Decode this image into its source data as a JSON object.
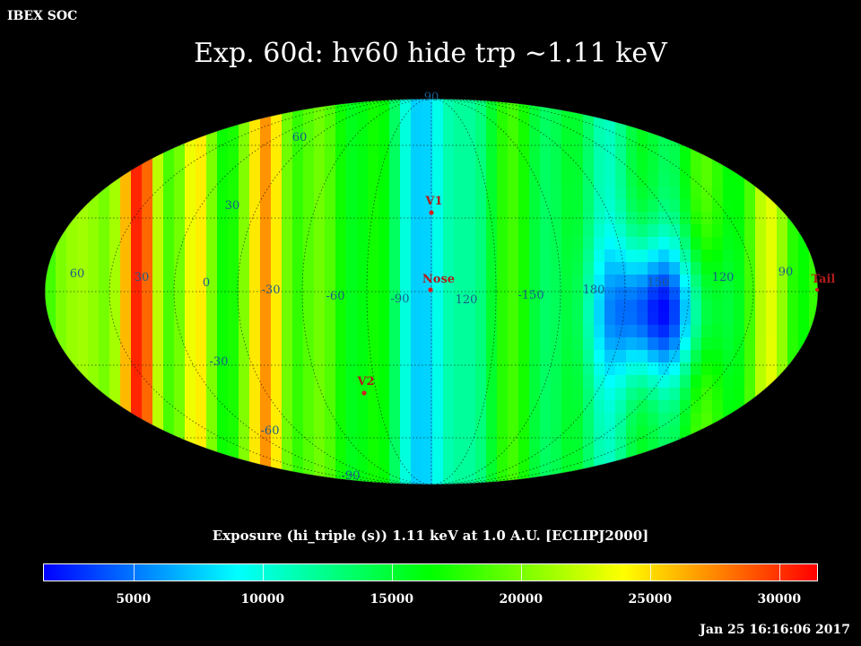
{
  "header": {
    "org_label": "IBEX SOC",
    "title": "Exp.   60d: hv60 hide trp ~1.11 keV"
  },
  "map": {
    "projection": "mollweide",
    "grid": true,
    "lat_labels": [
      "90",
      "60",
      "30",
      "-30",
      "-60",
      "-90"
    ],
    "lon_labels": [
      "60",
      "30",
      "0",
      "-30",
      "-60",
      "-90",
      "120",
      "-150",
      "180",
      "150",
      "120",
      "90"
    ],
    "markers": [
      {
        "label": "V1",
        "color": "#d22020"
      },
      {
        "label": "Nose",
        "color": "#d22020"
      },
      {
        "label": "V2",
        "color": "#d22020"
      },
      {
        "label": "Tail",
        "color": "#d22020"
      }
    ]
  },
  "colorbar": {
    "title": "Exposure (hi_triple (s))  1.11 keV at 1.0 A.U. [ECLIPJ2000]",
    "min": 1500,
    "max": 31500,
    "ticks": [
      "5000",
      "10000",
      "15000",
      "20000",
      "25000",
      "30000"
    ],
    "tick_values": [
      5000,
      10000,
      15000,
      20000,
      25000,
      30000
    ],
    "colors": [
      "#0000ff",
      "#00ffff",
      "#00ff00",
      "#ffff00",
      "#ff0000"
    ]
  },
  "footer": {
    "timestamp": "Jan 25 16:16:06 2017"
  }
}
